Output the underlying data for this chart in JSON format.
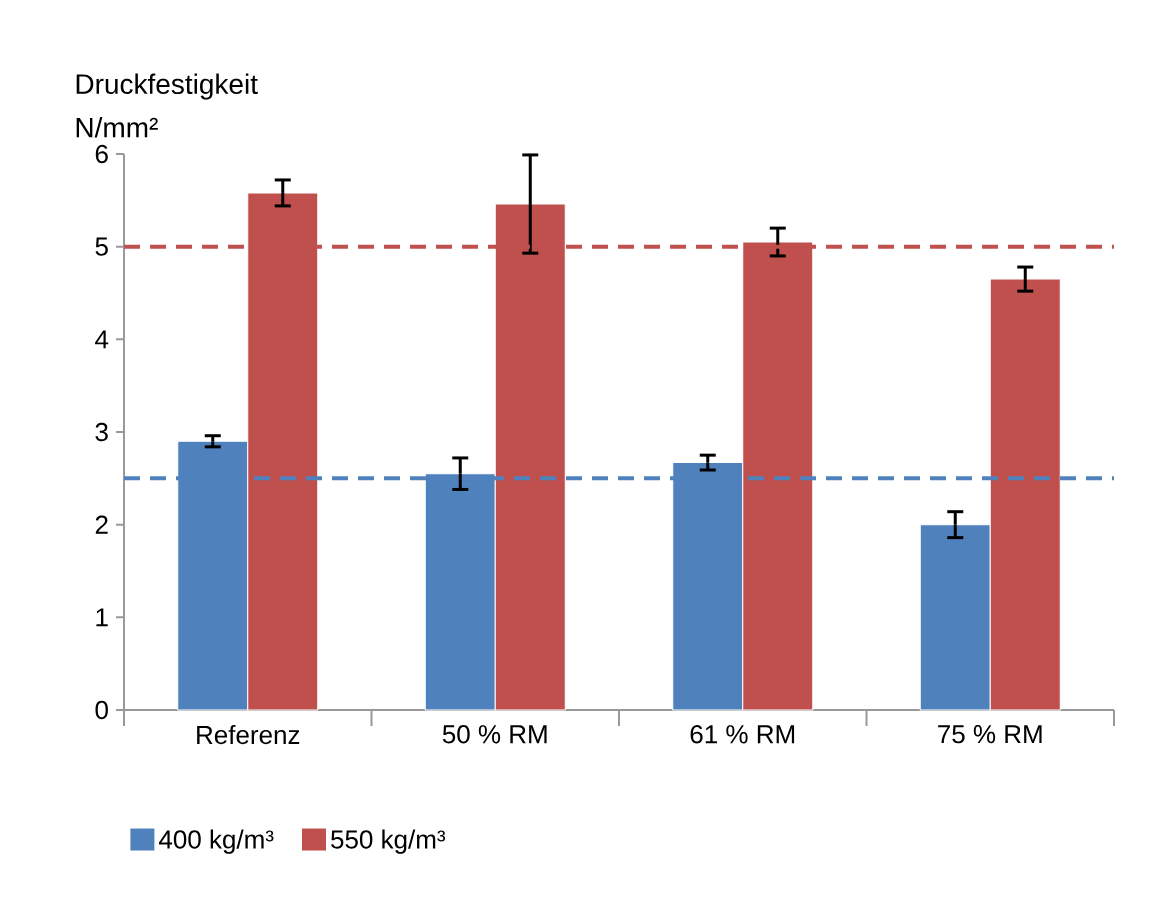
{
  "chart_data": {
    "type": "bar",
    "title": "Druckfestigkeit",
    "ylabel": "N/mm²",
    "categories": [
      "Referenz",
      "50 % RM",
      "61 % RM",
      "75 % RM"
    ],
    "series": [
      {
        "name": "400  kg/m³",
        "color": "#4f81bd",
        "values": [
          2.9,
          2.55,
          2.67,
          2.0
        ],
        "errors": [
          0.06,
          0.17,
          0.08,
          0.14
        ]
      },
      {
        "name": "550  kg/m³",
        "color": "#c0504d",
        "values": [
          5.58,
          5.46,
          5.05,
          4.65
        ],
        "errors": [
          0.14,
          0.53,
          0.15,
          0.13
        ]
      }
    ],
    "ylim": [
      0,
      6
    ],
    "yticks": [
      0,
      1,
      2,
      3,
      4,
      5,
      6
    ],
    "ref_lines": [
      {
        "axis": "y",
        "value": 2.5,
        "color": "#4f81bd",
        "line_style": "dashed"
      },
      {
        "axis": "y",
        "value": 5,
        "color": "#c0504d",
        "line_style": "dashed"
      }
    ],
    "legend": "bottom left",
    "grid": false
  }
}
